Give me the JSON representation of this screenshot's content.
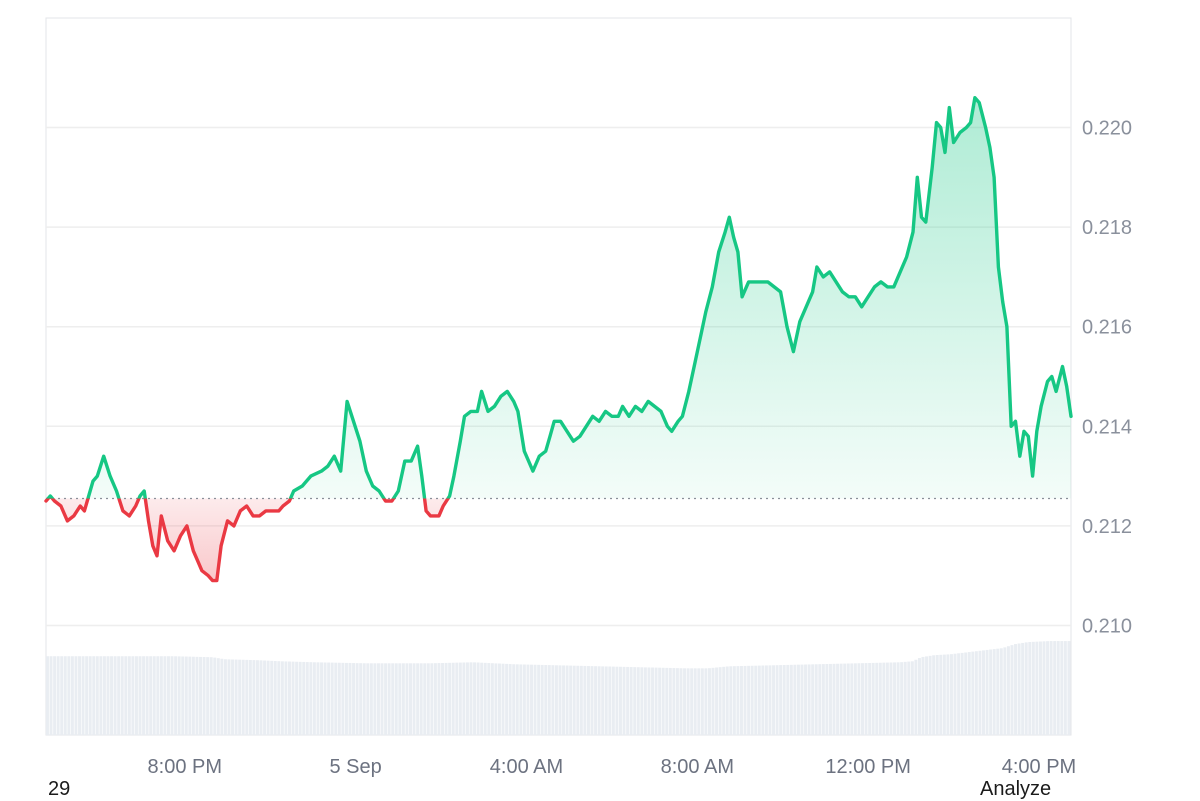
{
  "colors": {
    "up": "#16c784",
    "down": "#ea3943",
    "grid": "#eeeeee",
    "volume": "#e9edf2",
    "baseline": "#8a8f99"
  },
  "footer": {
    "left_text": "29",
    "right_text": "Analyze"
  },
  "chart_data": {
    "type": "area",
    "title": "",
    "xlabel": "",
    "ylabel": "",
    "baseline_value": 0.21255,
    "ylim": [
      0.2078,
      0.2222
    ],
    "y_ticks": [
      {
        "value": 0.22,
        "label": "0.220"
      },
      {
        "value": 0.218,
        "label": "0.218"
      },
      {
        "value": 0.216,
        "label": "0.216"
      },
      {
        "value": 0.214,
        "label": "0.214"
      },
      {
        "value": 0.212,
        "label": "0.212"
      },
      {
        "value": 0.21,
        "label": "0.210"
      }
    ],
    "x_range_hours": [
      0,
      24
    ],
    "x_ticks": [
      {
        "t": 3.25,
        "label": "8:00 PM"
      },
      {
        "t": 7.25,
        "label": "5 Sep"
      },
      {
        "t": 11.25,
        "label": "4:00 AM"
      },
      {
        "t": 15.25,
        "label": "8:00 AM"
      },
      {
        "t": 19.25,
        "label": "12:00 PM"
      },
      {
        "t": 23.25,
        "label": "4:00 PM"
      }
    ],
    "price": [
      [
        0.0,
        0.2125
      ],
      [
        0.1,
        0.2126
      ],
      [
        0.2,
        0.2125
      ],
      [
        0.35,
        0.2124
      ],
      [
        0.5,
        0.2121
      ],
      [
        0.65,
        0.2122
      ],
      [
        0.8,
        0.2124
      ],
      [
        0.9,
        0.2123
      ],
      [
        1.0,
        0.2126
      ],
      [
        1.1,
        0.2129
      ],
      [
        1.2,
        0.213
      ],
      [
        1.35,
        0.2134
      ],
      [
        1.5,
        0.213
      ],
      [
        1.65,
        0.2127
      ],
      [
        1.8,
        0.2123
      ],
      [
        1.95,
        0.2122
      ],
      [
        2.1,
        0.2124
      ],
      [
        2.2,
        0.2126
      ],
      [
        2.3,
        0.2127
      ],
      [
        2.4,
        0.2121
      ],
      [
        2.5,
        0.2116
      ],
      [
        2.6,
        0.2114
      ],
      [
        2.7,
        0.2122
      ],
      [
        2.85,
        0.2117
      ],
      [
        3.0,
        0.2115
      ],
      [
        3.15,
        0.2118
      ],
      [
        3.3,
        0.212
      ],
      [
        3.45,
        0.2115
      ],
      [
        3.55,
        0.2113
      ],
      [
        3.65,
        0.2111
      ],
      [
        3.8,
        0.211
      ],
      [
        3.9,
        0.2109
      ],
      [
        4.0,
        0.2109
      ],
      [
        4.1,
        0.2116
      ],
      [
        4.25,
        0.2121
      ],
      [
        4.4,
        0.212
      ],
      [
        4.55,
        0.2123
      ],
      [
        4.7,
        0.2124
      ],
      [
        4.85,
        0.2122
      ],
      [
        5.0,
        0.2122
      ],
      [
        5.15,
        0.2123
      ],
      [
        5.3,
        0.2123
      ],
      [
        5.45,
        0.2123
      ],
      [
        5.55,
        0.2124
      ],
      [
        5.7,
        0.2125
      ],
      [
        5.8,
        0.2127
      ],
      [
        6.0,
        0.2128
      ],
      [
        6.2,
        0.213
      ],
      [
        6.45,
        0.2131
      ],
      [
        6.6,
        0.2132
      ],
      [
        6.75,
        0.2134
      ],
      [
        6.9,
        0.2131
      ],
      [
        7.05,
        0.2145
      ],
      [
        7.2,
        0.2141
      ],
      [
        7.35,
        0.2137
      ],
      [
        7.5,
        0.2131
      ],
      [
        7.65,
        0.2128
      ],
      [
        7.8,
        0.2127
      ],
      [
        7.95,
        0.2125
      ],
      [
        8.1,
        0.2125
      ],
      [
        8.25,
        0.2127
      ],
      [
        8.4,
        0.2133
      ],
      [
        8.55,
        0.2133
      ],
      [
        8.7,
        0.2136
      ],
      [
        8.8,
        0.213
      ],
      [
        8.9,
        0.2123
      ],
      [
        9.0,
        0.2122
      ],
      [
        9.1,
        0.2122
      ],
      [
        9.2,
        0.2122
      ],
      [
        9.3,
        0.2124
      ],
      [
        9.45,
        0.2126
      ],
      [
        9.55,
        0.213
      ],
      [
        9.7,
        0.2137
      ],
      [
        9.8,
        0.2142
      ],
      [
        9.95,
        0.2143
      ],
      [
        10.1,
        0.2143
      ],
      [
        10.2,
        0.2147
      ],
      [
        10.35,
        0.2143
      ],
      [
        10.5,
        0.2144
      ],
      [
        10.65,
        0.2146
      ],
      [
        10.8,
        0.2147
      ],
      [
        10.95,
        0.2145
      ],
      [
        11.05,
        0.2143
      ],
      [
        11.2,
        0.2135
      ],
      [
        11.3,
        0.2133
      ],
      [
        11.4,
        0.2131
      ],
      [
        11.55,
        0.2134
      ],
      [
        11.7,
        0.2135
      ],
      [
        11.8,
        0.2138
      ],
      [
        11.9,
        0.2141
      ],
      [
        12.05,
        0.2141
      ],
      [
        12.2,
        0.2139
      ],
      [
        12.35,
        0.2137
      ],
      [
        12.5,
        0.2138
      ],
      [
        12.65,
        0.214
      ],
      [
        12.8,
        0.2142
      ],
      [
        12.95,
        0.2141
      ],
      [
        13.1,
        0.2143
      ],
      [
        13.25,
        0.2142
      ],
      [
        13.4,
        0.2142
      ],
      [
        13.5,
        0.2144
      ],
      [
        13.65,
        0.2142
      ],
      [
        13.8,
        0.2144
      ],
      [
        13.95,
        0.2143
      ],
      [
        14.1,
        0.2145
      ],
      [
        14.25,
        0.2144
      ],
      [
        14.4,
        0.2143
      ],
      [
        14.55,
        0.214
      ],
      [
        14.65,
        0.2139
      ],
      [
        14.8,
        0.2141
      ],
      [
        14.9,
        0.2142
      ],
      [
        15.05,
        0.2147
      ],
      [
        15.2,
        0.2153
      ],
      [
        15.35,
        0.2159
      ],
      [
        15.45,
        0.2163
      ],
      [
        15.6,
        0.2168
      ],
      [
        15.75,
        0.2175
      ],
      [
        15.9,
        0.2179
      ],
      [
        16.0,
        0.2182
      ],
      [
        16.1,
        0.2178
      ],
      [
        16.2,
        0.2175
      ],
      [
        16.3,
        0.2166
      ],
      [
        16.45,
        0.2169
      ],
      [
        16.6,
        0.2169
      ],
      [
        16.75,
        0.2169
      ],
      [
        16.9,
        0.2169
      ],
      [
        17.05,
        0.2168
      ],
      [
        17.2,
        0.2167
      ],
      [
        17.35,
        0.216
      ],
      [
        17.5,
        0.2155
      ],
      [
        17.65,
        0.2161
      ],
      [
        17.8,
        0.2164
      ],
      [
        17.95,
        0.2167
      ],
      [
        18.05,
        0.2172
      ],
      [
        18.2,
        0.217
      ],
      [
        18.35,
        0.2171
      ],
      [
        18.5,
        0.2169
      ],
      [
        18.65,
        0.2167
      ],
      [
        18.8,
        0.2166
      ],
      [
        18.95,
        0.2166
      ],
      [
        19.1,
        0.2164
      ],
      [
        19.25,
        0.2166
      ],
      [
        19.4,
        0.2168
      ],
      [
        19.55,
        0.2169
      ],
      [
        19.7,
        0.2168
      ],
      [
        19.85,
        0.2168
      ],
      [
        20.0,
        0.2171
      ],
      [
        20.15,
        0.2174
      ],
      [
        20.3,
        0.2179
      ],
      [
        20.4,
        0.219
      ],
      [
        20.5,
        0.2182
      ],
      [
        20.6,
        0.2181
      ],
      [
        20.75,
        0.2192
      ],
      [
        20.85,
        0.2201
      ],
      [
        20.95,
        0.22
      ],
      [
        21.05,
        0.2195
      ],
      [
        21.15,
        0.2204
      ],
      [
        21.25,
        0.2197
      ],
      [
        21.4,
        0.2199
      ],
      [
        21.55,
        0.22
      ],
      [
        21.65,
        0.2201
      ],
      [
        21.75,
        0.2206
      ],
      [
        21.85,
        0.2205
      ],
      [
        22.0,
        0.22
      ],
      [
        22.1,
        0.2196
      ],
      [
        22.2,
        0.219
      ],
      [
        22.3,
        0.2172
      ],
      [
        22.4,
        0.2165
      ],
      [
        22.5,
        0.216
      ],
      [
        22.6,
        0.214
      ],
      [
        22.7,
        0.2141
      ],
      [
        22.8,
        0.2134
      ],
      [
        22.9,
        0.2139
      ],
      [
        23.0,
        0.2138
      ],
      [
        23.1,
        0.213
      ],
      [
        23.2,
        0.2139
      ],
      [
        23.3,
        0.2144
      ],
      [
        23.45,
        0.2149
      ],
      [
        23.55,
        0.215
      ],
      [
        23.65,
        0.2147
      ],
      [
        23.8,
        0.2152
      ],
      [
        23.9,
        0.2148
      ],
      [
        24.0,
        0.2142
      ]
    ],
    "volume_relative": [
      [
        0.0,
        0.78
      ],
      [
        3.0,
        0.78
      ],
      [
        3.9,
        0.77
      ],
      [
        4.2,
        0.75
      ],
      [
        5.0,
        0.74
      ],
      [
        5.5,
        0.73
      ],
      [
        6.3,
        0.72
      ],
      [
        7.5,
        0.71
      ],
      [
        9.0,
        0.71
      ],
      [
        10.0,
        0.72
      ],
      [
        11.0,
        0.7
      ],
      [
        12.0,
        0.69
      ],
      [
        13.0,
        0.68
      ],
      [
        14.0,
        0.67
      ],
      [
        15.0,
        0.66
      ],
      [
        15.5,
        0.66
      ],
      [
        16.0,
        0.68
      ],
      [
        17.0,
        0.69
      ],
      [
        18.0,
        0.7
      ],
      [
        19.0,
        0.71
      ],
      [
        20.0,
        0.72
      ],
      [
        20.3,
        0.73
      ],
      [
        20.5,
        0.77
      ],
      [
        20.8,
        0.79
      ],
      [
        21.2,
        0.8
      ],
      [
        21.6,
        0.82
      ],
      [
        22.0,
        0.84
      ],
      [
        22.4,
        0.86
      ],
      [
        22.7,
        0.9
      ],
      [
        23.0,
        0.92
      ],
      [
        23.5,
        0.93
      ],
      [
        24.0,
        0.93
      ]
    ]
  }
}
